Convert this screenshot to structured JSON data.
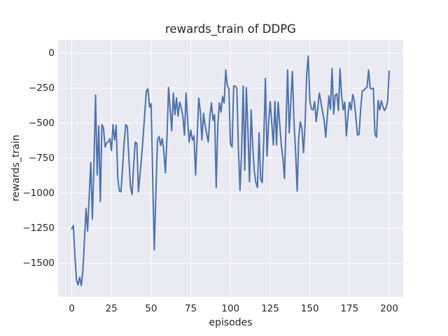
{
  "chart_data": {
    "type": "line",
    "title": "rewards_train of DDPG",
    "xlabel": "episodes",
    "ylabel": "rewards_train",
    "x_values": {
      "start": 0,
      "end": 200,
      "step": 1
    },
    "series": [
      {
        "name": "rewards_train",
        "color": "#4c72b0",
        "values": [
          -1255,
          -1230,
          -1450,
          -1620,
          -1655,
          -1600,
          -1660,
          -1555,
          -1335,
          -1110,
          -1270,
          -1020,
          -780,
          -1185,
          -790,
          -300,
          -870,
          -520,
          -1060,
          -510,
          -535,
          -670,
          -640,
          -635,
          -610,
          -695,
          -510,
          -620,
          -515,
          -895,
          -985,
          -990,
          -820,
          -640,
          -510,
          -525,
          -750,
          -955,
          -1010,
          -800,
          -635,
          -645,
          -990,
          -870,
          -740,
          -590,
          -430,
          -270,
          -255,
          -385,
          -360,
          -900,
          -1405,
          -1000,
          -620,
          -595,
          -660,
          -610,
          -700,
          -855,
          -600,
          -245,
          -400,
          -555,
          -285,
          -440,
          -320,
          -450,
          -350,
          -390,
          -450,
          -585,
          -285,
          -480,
          -635,
          -550,
          -620,
          -590,
          -870,
          -600,
          -320,
          -415,
          -620,
          -430,
          -515,
          -575,
          -635,
          -450,
          -355,
          -480,
          -440,
          -960,
          -520,
          -355,
          -420,
          -310,
          -355,
          -120,
          -230,
          -255,
          -650,
          -670,
          -235,
          -235,
          -250,
          -685,
          -980,
          -700,
          -235,
          -835,
          -245,
          -560,
          -920,
          -405,
          -655,
          -845,
          -925,
          -960,
          -570,
          -900,
          -925,
          -600,
          -180,
          -735,
          -500,
          -345,
          -500,
          -655,
          -345,
          -655,
          -350,
          -500,
          -655,
          -750,
          -895,
          -500,
          -120,
          -570,
          -350,
          -130,
          -490,
          -700,
          -985,
          -600,
          -490,
          -540,
          -710,
          -500,
          -150,
          -20,
          -340,
          -400,
          -405,
          -345,
          -490,
          -390,
          -285,
          -350,
          -420,
          -480,
          -600,
          -450,
          -305,
          -400,
          -110,
          -435,
          -300,
          -290,
          -410,
          -112,
          -300,
          -405,
          -350,
          -590,
          -450,
          -350,
          -405,
          -295,
          -340,
          -460,
          -585,
          -580,
          -400,
          -270,
          -265,
          -250,
          -245,
          -120,
          -250,
          -255,
          -250,
          -580,
          -600,
          -337,
          -405,
          -340,
          -380,
          -410,
          -390,
          -345,
          -128
        ]
      }
    ],
    "xlim": [
      -8.6,
      208.8
    ],
    "ylim": [
      -1740,
      95
    ],
    "x_ticks": [
      0,
      25,
      50,
      75,
      100,
      125,
      150,
      175,
      200
    ],
    "x_tick_labels": [
      "0",
      "25",
      "50",
      "75",
      "100",
      "125",
      "150",
      "175",
      "200"
    ],
    "y_ticks": [
      0,
      -250,
      -500,
      -750,
      -1000,
      -1250,
      -1500
    ],
    "y_tick_labels": [
      "0",
      "−250",
      "−500",
      "−750",
      "−1000",
      "−1250",
      "−1500"
    ],
    "grid": true,
    "legend": "none",
    "colors": {
      "line": "#4c72b0",
      "plot_background": "#eaeaf2",
      "grid": "#ffffff",
      "text": "#262626",
      "figure_background": "#ffffff"
    }
  }
}
